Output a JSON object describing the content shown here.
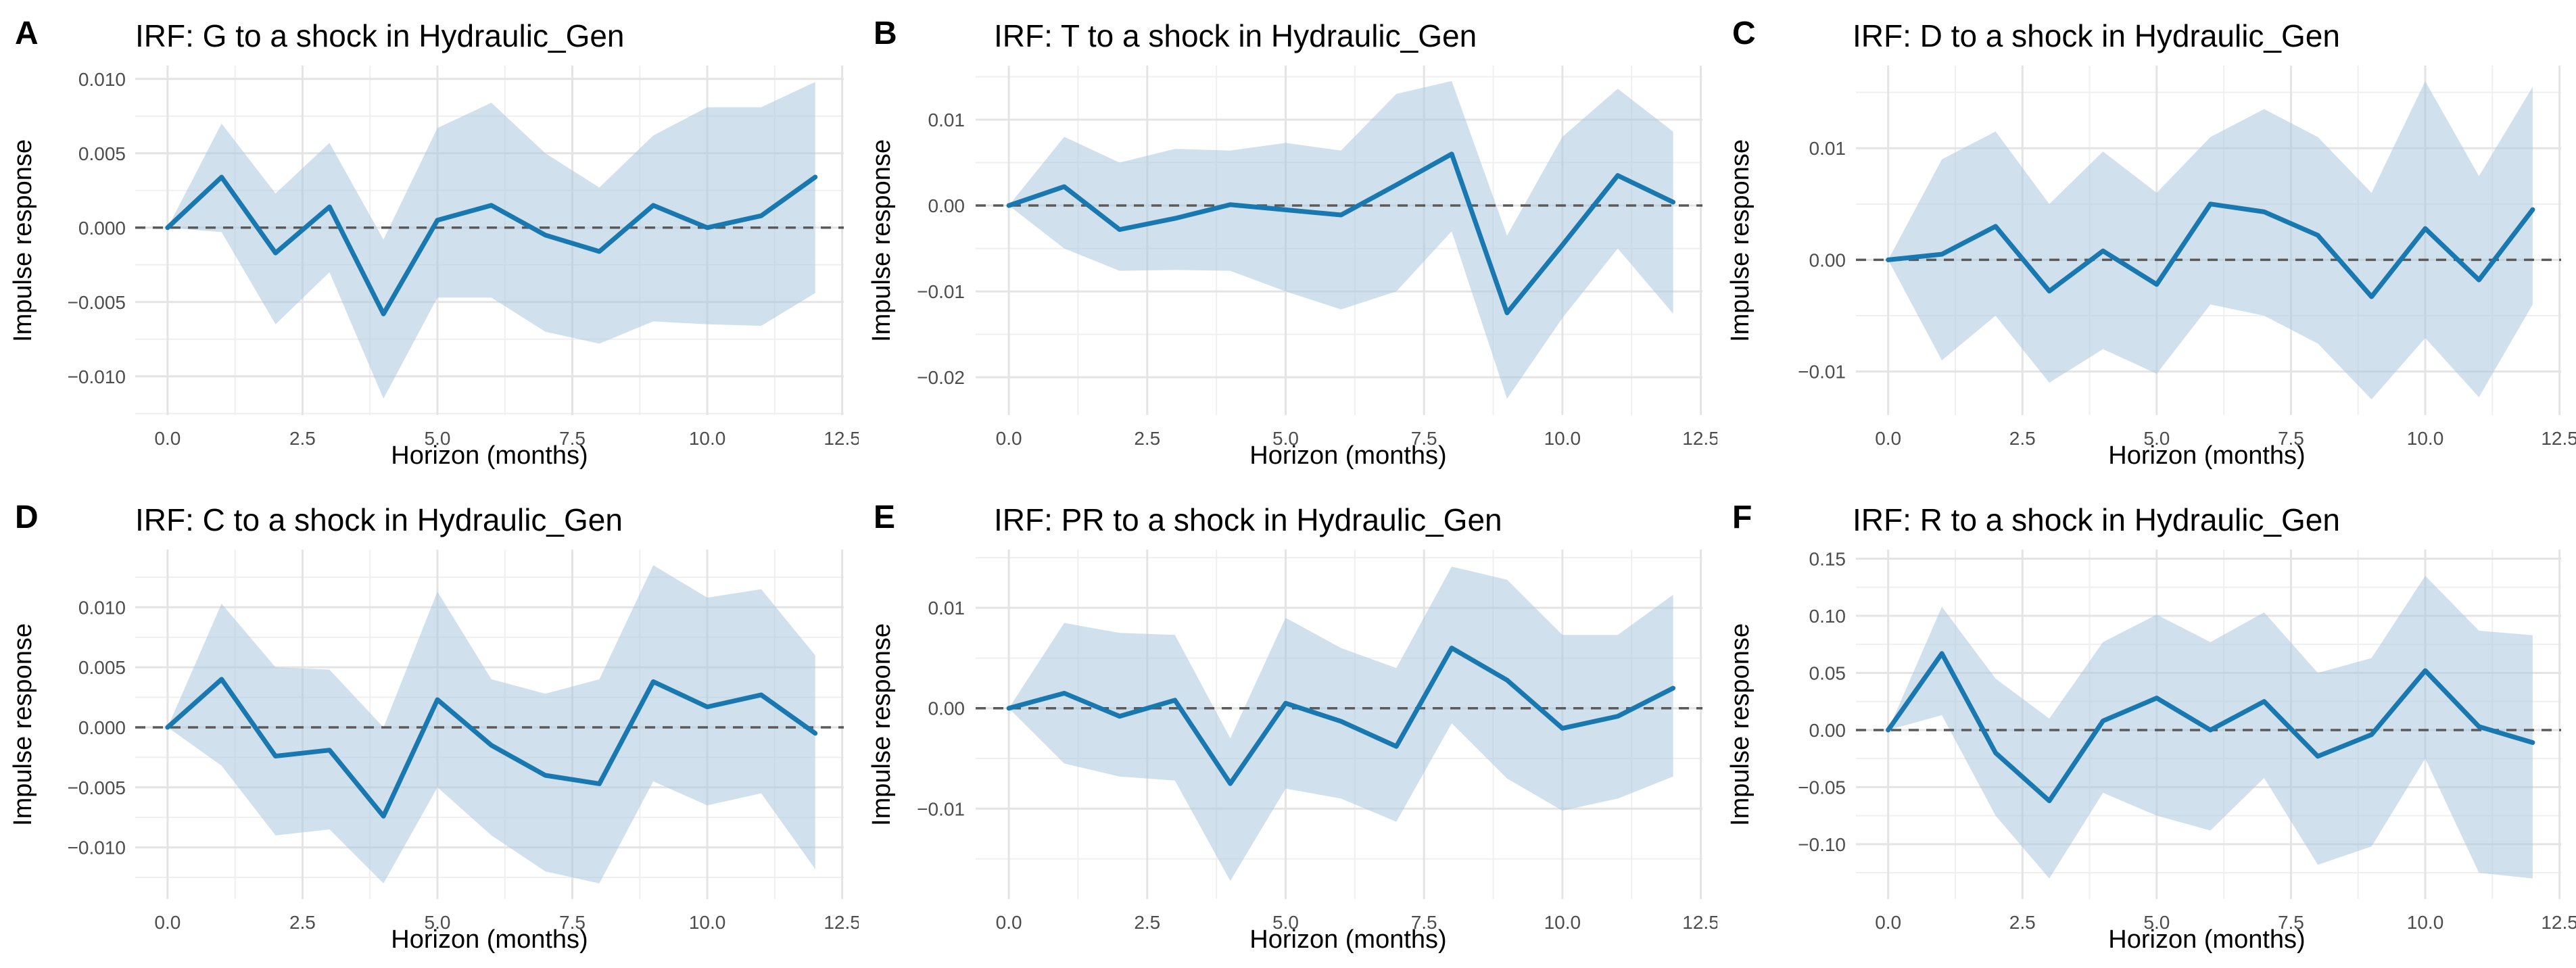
{
  "figure": {
    "background": "#ffffff",
    "shock_variable": "Hydraulic_Gen",
    "panel_tags": [
      "A",
      "B",
      "C",
      "D",
      "E",
      "F"
    ]
  },
  "axes": {
    "x_label": "Horizon (months)",
    "y_label": "Impulse response",
    "x_domain": [
      -0.6,
      12.53
    ],
    "x_ticks": {
      "values": [
        0,
        2.5,
        5,
        7.5,
        10,
        12.5
      ],
      "labels": [
        "0.0",
        "2.5",
        "5.0",
        "7.5",
        "10.0",
        "12.5"
      ]
    },
    "x_minor": [
      1.25,
      3.75,
      6.25,
      8.75,
      11.25
    ]
  },
  "colors": {
    "line": "#1878af",
    "ribbon": "#a9c8df",
    "ribbon_opacity": 0.55,
    "grid_major": "#e4e4e4",
    "grid_minor": "#efefef",
    "zero_line": "#5a5a5a",
    "tick_text": "#4d4d4d",
    "text": "#000000",
    "panel_background": "#ffffff"
  },
  "chart_data": [
    {
      "type": "line",
      "tag": "A",
      "title": "IRF: G to a shock in Hydraulic_Gen",
      "response_variable": "G",
      "shock_variable": "Hydraulic_Gen",
      "xlabel": "Horizon (months)",
      "ylabel": "Impulse response",
      "x": [
        0,
        1,
        2,
        3,
        4,
        5,
        6,
        7,
        8,
        9,
        10,
        11,
        12
      ],
      "series": [
        {
          "name": "irf",
          "values": [
            0,
            0.0034,
            -0.0017,
            0.0014,
            -0.0058,
            0.0005,
            0.0015,
            -0.0005,
            -0.0016,
            0.0015,
            0.0,
            0.0008,
            0.0034
          ]
        },
        {
          "name": "ci_upper",
          "values": [
            0,
            0.007,
            0.0023,
            0.0057,
            -0.0008,
            0.0067,
            0.0084,
            0.005,
            0.0027,
            0.0062,
            0.0081,
            0.0081,
            0.0098
          ]
        },
        {
          "name": "ci_lower",
          "values": [
            0,
            -0.0003,
            -0.0065,
            -0.003,
            -0.0115,
            -0.0047,
            -0.0047,
            -0.007,
            -0.0078,
            -0.0063,
            -0.0065,
            -0.0066,
            -0.0044
          ]
        }
      ],
      "y_domain": [
        -0.0126,
        0.0109
      ],
      "y_ticks": {
        "values": [
          0.01,
          0.005,
          0.0,
          -0.005,
          -0.01
        ],
        "labels": [
          "0.010",
          "0.005",
          "0.000",
          "−0.005",
          "−0.010"
        ]
      },
      "zero_line": 0
    },
    {
      "type": "line",
      "tag": "B",
      "title": "IRF: T to a shock in Hydraulic_Gen",
      "response_variable": "T",
      "shock_variable": "Hydraulic_Gen",
      "xlabel": "Horizon (months)",
      "ylabel": "Impulse response",
      "x": [
        0,
        1,
        2,
        3,
        4,
        5,
        6,
        7,
        8,
        9,
        10,
        11,
        12
      ],
      "series": [
        {
          "name": "irf",
          "values": [
            0,
            0.0022,
            -0.0028,
            -0.0015,
            0.0001,
            -0.0005,
            -0.0011,
            0.0024,
            0.006,
            -0.0125,
            -0.0046,
            0.0035,
            0.0004
          ]
        },
        {
          "name": "ci_upper",
          "values": [
            0,
            0.008,
            0.005,
            0.0066,
            0.0064,
            0.0073,
            0.0064,
            0.013,
            0.0145,
            -0.0035,
            0.008,
            0.0136,
            0.0086
          ]
        },
        {
          "name": "ci_lower",
          "values": [
            0,
            -0.005,
            -0.0076,
            -0.0075,
            -0.0076,
            -0.01,
            -0.0121,
            -0.01,
            -0.003,
            -0.0225,
            -0.0131,
            -0.005,
            -0.0126
          ]
        }
      ],
      "y_domain": [
        -0.0244,
        0.0163
      ],
      "y_ticks": {
        "values": [
          0.01,
          0.0,
          -0.01,
          -0.02
        ],
        "labels": [
          "0.01",
          "0.00",
          "−0.01",
          "−0.02"
        ]
      },
      "zero_line": 0
    },
    {
      "type": "line",
      "tag": "C",
      "title": "IRF: D to a shock in Hydraulic_Gen",
      "response_variable": "D",
      "shock_variable": "Hydraulic_Gen",
      "xlabel": "Horizon (months)",
      "ylabel": "Impulse response",
      "x": [
        0,
        1,
        2,
        3,
        4,
        5,
        6,
        7,
        8,
        9,
        10,
        11,
        12
      ],
      "series": [
        {
          "name": "irf",
          "values": [
            0,
            0.0005,
            0.003,
            -0.0028,
            0.0008,
            -0.0022,
            0.005,
            0.0043,
            0.0022,
            -0.0033,
            0.0028,
            -0.0018,
            0.0045
          ]
        },
        {
          "name": "ci_upper",
          "values": [
            0,
            0.009,
            0.0115,
            0.005,
            0.0097,
            0.006,
            0.011,
            0.0135,
            0.011,
            0.006,
            0.016,
            0.0075,
            0.0155
          ]
        },
        {
          "name": "ci_lower",
          "values": [
            0,
            -0.009,
            -0.005,
            -0.011,
            -0.008,
            -0.0102,
            -0.004,
            -0.005,
            -0.0075,
            -0.0125,
            -0.007,
            -0.0123,
            -0.004
          ]
        }
      ],
      "y_domain": [
        -0.0139,
        0.0174
      ],
      "y_ticks": {
        "values": [
          0.01,
          0.0,
          -0.01
        ],
        "labels": [
          "0.01",
          "0.00",
          "−0.01"
        ]
      },
      "zero_line": 0
    },
    {
      "type": "line",
      "tag": "D",
      "title": "IRF: C to a shock in Hydraulic_Gen",
      "response_variable": "C",
      "shock_variable": "Hydraulic_Gen",
      "xlabel": "Horizon (months)",
      "ylabel": "Impulse response",
      "x": [
        0,
        1,
        2,
        3,
        4,
        5,
        6,
        7,
        8,
        9,
        10,
        11,
        12
      ],
      "series": [
        {
          "name": "irf",
          "values": [
            0,
            0.004,
            -0.0024,
            -0.0019,
            -0.0074,
            0.0023,
            -0.0015,
            -0.004,
            -0.0047,
            0.0038,
            0.0017,
            0.0027,
            -0.0005
          ]
        },
        {
          "name": "ci_upper",
          "values": [
            0,
            0.0103,
            0.005,
            0.0048,
            0.0,
            0.0113,
            0.004,
            0.0028,
            0.004,
            0.0135,
            0.0108,
            0.0115,
            0.006
          ]
        },
        {
          "name": "ci_lower",
          "values": [
            0,
            -0.0032,
            -0.009,
            -0.0085,
            -0.013,
            -0.005,
            -0.009,
            -0.012,
            -0.013,
            -0.0045,
            -0.0065,
            -0.0055,
            -0.0118
          ]
        }
      ],
      "y_domain": [
        -0.0143,
        0.0148
      ],
      "y_ticks": {
        "values": [
          0.01,
          0.005,
          0.0,
          -0.005,
          -0.01
        ],
        "labels": [
          "0.010",
          "0.005",
          "0.000",
          "−0.005",
          "−0.010"
        ]
      },
      "zero_line": 0
    },
    {
      "type": "line",
      "tag": "E",
      "title": "IRF: PR to a shock in Hydraulic_Gen",
      "response_variable": "PR",
      "shock_variable": "Hydraulic_Gen",
      "xlabel": "Horizon (months)",
      "ylabel": "Impulse response",
      "x": [
        0,
        1,
        2,
        3,
        4,
        5,
        6,
        7,
        8,
        9,
        10,
        11,
        12
      ],
      "series": [
        {
          "name": "irf",
          "values": [
            0,
            0.0015,
            -0.0008,
            0.0008,
            -0.0075,
            0.0005,
            -0.0013,
            -0.0038,
            0.006,
            0.0028,
            -0.002,
            -0.0008,
            0.002
          ]
        },
        {
          "name": "ci_upper",
          "values": [
            0,
            0.0085,
            0.0075,
            0.0073,
            -0.003,
            0.009,
            0.006,
            0.004,
            0.0141,
            0.0128,
            0.0073,
            0.0073,
            0.0113
          ]
        },
        {
          "name": "ci_lower",
          "values": [
            0,
            -0.0055,
            -0.0068,
            -0.0072,
            -0.0172,
            -0.008,
            -0.009,
            -0.0113,
            -0.0015,
            -0.007,
            -0.0102,
            -0.009,
            -0.0068
          ]
        }
      ],
      "y_domain": [
        -0.019,
        0.0158
      ],
      "y_ticks": {
        "values": [
          0.01,
          0.0,
          -0.01
        ],
        "labels": [
          "0.01",
          "0.00",
          "−0.01"
        ]
      },
      "zero_line": 0
    },
    {
      "type": "line",
      "tag": "F",
      "title": "IRF: R to a shock in Hydraulic_Gen",
      "response_variable": "R",
      "shock_variable": "Hydraulic_Gen",
      "xlabel": "Horizon (months)",
      "ylabel": "Impulse response",
      "x": [
        0,
        1,
        2,
        3,
        4,
        5,
        6,
        7,
        8,
        9,
        10,
        11,
        12
      ],
      "series": [
        {
          "name": "irf",
          "values": [
            0,
            0.067,
            -0.02,
            -0.062,
            0.008,
            0.028,
            0.0,
            0.025,
            -0.023,
            -0.004,
            0.052,
            0.003,
            -0.011
          ]
        },
        {
          "name": "ci_upper",
          "values": [
            0,
            0.108,
            0.045,
            0.01,
            0.077,
            0.101,
            0.077,
            0.103,
            0.05,
            0.063,
            0.135,
            0.087,
            0.083
          ]
        },
        {
          "name": "ci_lower",
          "values": [
            0,
            0.013,
            -0.075,
            -0.13,
            -0.055,
            -0.075,
            -0.088,
            -0.042,
            -0.118,
            -0.102,
            -0.025,
            -0.125,
            -0.13
          ]
        }
      ],
      "y_domain": [
        -0.148,
        0.158
      ],
      "y_ticks": {
        "values": [
          0.15,
          0.1,
          0.05,
          0.0,
          -0.05,
          -0.1
        ],
        "labels": [
          "0.15",
          "0.10",
          "0.05",
          "0.00",
          "−0.05",
          "−0.10"
        ]
      },
      "zero_line": 0
    }
  ]
}
